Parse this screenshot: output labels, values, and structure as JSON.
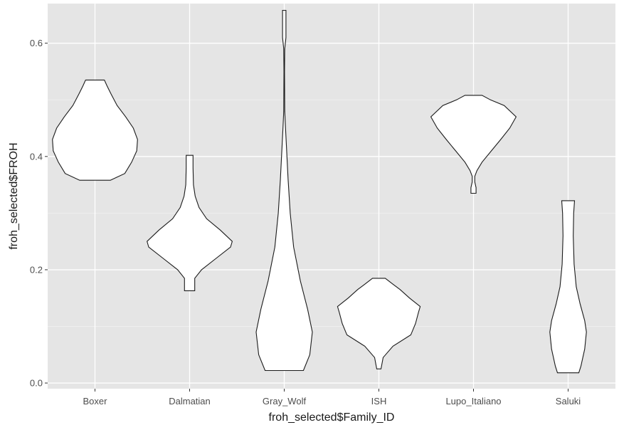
{
  "chart_data": {
    "type": "violin",
    "title": "",
    "xlabel": "froh_selected$Family_ID",
    "ylabel": "froh_selected$FROH",
    "ylim": [
      -0.01,
      0.67
    ],
    "yticks": [
      0.0,
      0.2,
      0.4,
      0.6
    ],
    "ytick_labels": [
      "0.0",
      "0.2",
      "0.4",
      "0.6"
    ],
    "grid": true,
    "panel_background": "#e5e5e5",
    "violin_fill": "#ffffff",
    "violin_stroke": "#1a1a1a",
    "categories": [
      "Boxer",
      "Dalmatian",
      "Gray_Wolf",
      "ISH",
      "Lupo_Italiano",
      "Saluki"
    ],
    "violins": [
      {
        "category": "Boxer",
        "min": 0.358,
        "max": 0.535,
        "profile": [
          [
            0.358,
            0.36
          ],
          [
            0.37,
            0.7
          ],
          [
            0.39,
            0.86
          ],
          [
            0.41,
            0.98
          ],
          [
            0.43,
            1.0
          ],
          [
            0.45,
            0.9
          ],
          [
            0.47,
            0.72
          ],
          [
            0.49,
            0.52
          ],
          [
            0.51,
            0.38
          ],
          [
            0.525,
            0.28
          ],
          [
            0.535,
            0.22
          ]
        ]
      },
      {
        "category": "Dalmatian",
        "min": 0.163,
        "max": 0.402,
        "profile": [
          [
            0.163,
            0.12
          ],
          [
            0.185,
            0.12
          ],
          [
            0.2,
            0.28
          ],
          [
            0.22,
            0.62
          ],
          [
            0.24,
            0.96
          ],
          [
            0.25,
            1.0
          ],
          [
            0.27,
            0.72
          ],
          [
            0.29,
            0.4
          ],
          [
            0.31,
            0.22
          ],
          [
            0.33,
            0.13
          ],
          [
            0.35,
            0.09
          ],
          [
            0.38,
            0.08
          ],
          [
            0.402,
            0.08
          ]
        ]
      },
      {
        "category": "Gray_Wolf",
        "min": 0.022,
        "max": 0.658,
        "profile": [
          [
            0.022,
            0.45
          ],
          [
            0.05,
            0.6
          ],
          [
            0.09,
            0.66
          ],
          [
            0.13,
            0.55
          ],
          [
            0.18,
            0.38
          ],
          [
            0.24,
            0.22
          ],
          [
            0.3,
            0.14
          ],
          [
            0.36,
            0.09
          ],
          [
            0.42,
            0.05
          ],
          [
            0.45,
            0.03
          ],
          [
            0.48,
            0.012
          ],
          [
            0.55,
            0.006
          ],
          [
            0.59,
            0.012
          ],
          [
            0.61,
            0.04
          ],
          [
            0.63,
            0.04
          ],
          [
            0.658,
            0.04
          ]
        ]
      },
      {
        "category": "ISH",
        "min": 0.025,
        "max": 0.185,
        "profile": [
          [
            0.025,
            0.05
          ],
          [
            0.045,
            0.1
          ],
          [
            0.065,
            0.33
          ],
          [
            0.085,
            0.75
          ],
          [
            0.105,
            0.86
          ],
          [
            0.125,
            0.93
          ],
          [
            0.135,
            0.97
          ],
          [
            0.15,
            0.72
          ],
          [
            0.165,
            0.5
          ],
          [
            0.175,
            0.32
          ],
          [
            0.185,
            0.15
          ]
        ]
      },
      {
        "category": "Lupo_Italiano",
        "min": 0.335,
        "max": 0.508,
        "profile": [
          [
            0.335,
            0.06
          ],
          [
            0.345,
            0.06
          ],
          [
            0.355,
            0.03
          ],
          [
            0.365,
            0.03
          ],
          [
            0.375,
            0.08
          ],
          [
            0.39,
            0.2
          ],
          [
            0.41,
            0.42
          ],
          [
            0.43,
            0.64
          ],
          [
            0.45,
            0.85
          ],
          [
            0.47,
            1.0
          ],
          [
            0.49,
            0.72
          ],
          [
            0.5,
            0.4
          ],
          [
            0.508,
            0.2
          ]
        ]
      },
      {
        "category": "Saluki",
        "min": 0.018,
        "max": 0.322,
        "profile": [
          [
            0.018,
            0.25
          ],
          [
            0.03,
            0.3
          ],
          [
            0.06,
            0.39
          ],
          [
            0.09,
            0.43
          ],
          [
            0.11,
            0.39
          ],
          [
            0.14,
            0.28
          ],
          [
            0.17,
            0.19
          ],
          [
            0.21,
            0.14
          ],
          [
            0.26,
            0.12
          ],
          [
            0.3,
            0.13
          ],
          [
            0.322,
            0.15
          ]
        ]
      }
    ]
  }
}
